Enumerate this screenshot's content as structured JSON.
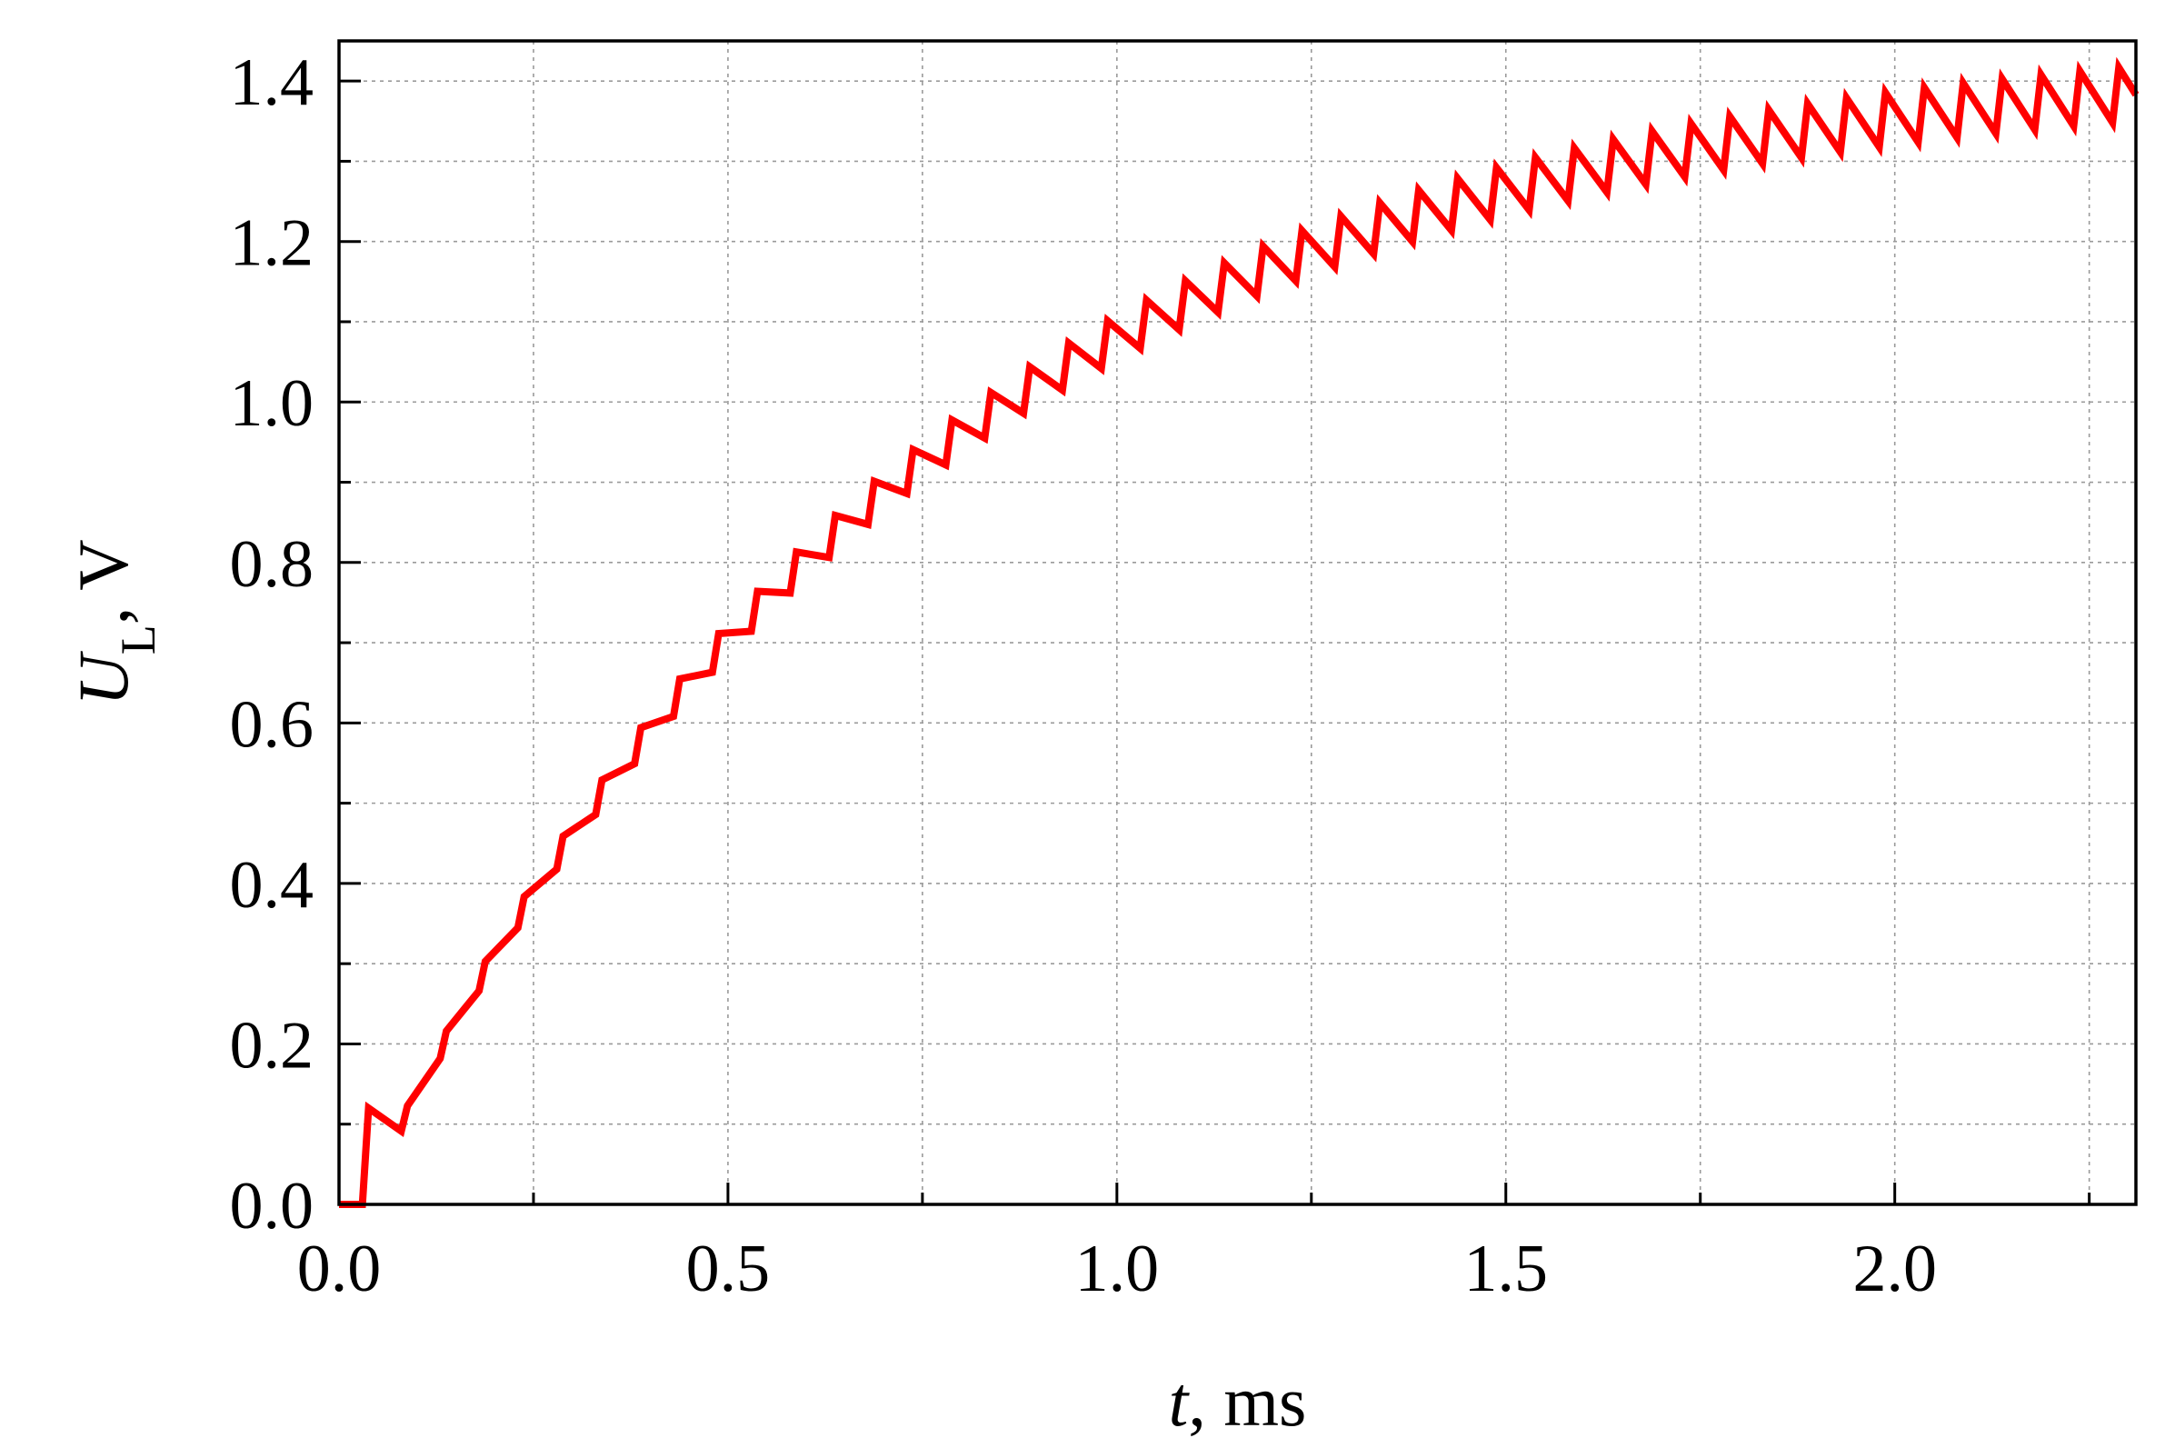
{
  "colors": {
    "series": "#ff0000",
    "grid": "#9a9a9a",
    "axis": "#000000",
    "background": "#ffffff"
  },
  "chart_data": {
    "type": "line",
    "xlabel": {
      "var": "t",
      "rest": ", ms"
    },
    "ylabel": {
      "var": "U",
      "sub": "L",
      "rest": ", V"
    },
    "xlim": [
      0,
      2.31
    ],
    "ylim": [
      0,
      1.45
    ],
    "x_ticks": [
      0,
      0.5,
      1.0,
      1.5,
      2.0
    ],
    "x_tick_labels": [
      "0.0",
      "0.5",
      "1.0",
      "1.5",
      "2.0"
    ],
    "x_minor_step": 0.25,
    "y_ticks": [
      0,
      0.2,
      0.4,
      0.6,
      0.8,
      1.0,
      1.2,
      1.4
    ],
    "y_tick_labels": [
      "0.0",
      "0.2",
      "0.4",
      "0.6",
      "0.8",
      "1.0",
      "1.2",
      "1.4"
    ],
    "y_minor_step": 0.1,
    "grid": true,
    "legend": "none",
    "series": [
      {
        "color": "#ff0000",
        "sawtooth": {
          "start_x": 0.03,
          "period": 0.05,
          "tau": 0.7,
          "final": 1.44,
          "ripple_start": 0.012,
          "ripple_end": 0.07,
          "rise_duration": 0.008,
          "first_peak": 0.12,
          "end_x": 2.31
        }
      }
    ]
  }
}
